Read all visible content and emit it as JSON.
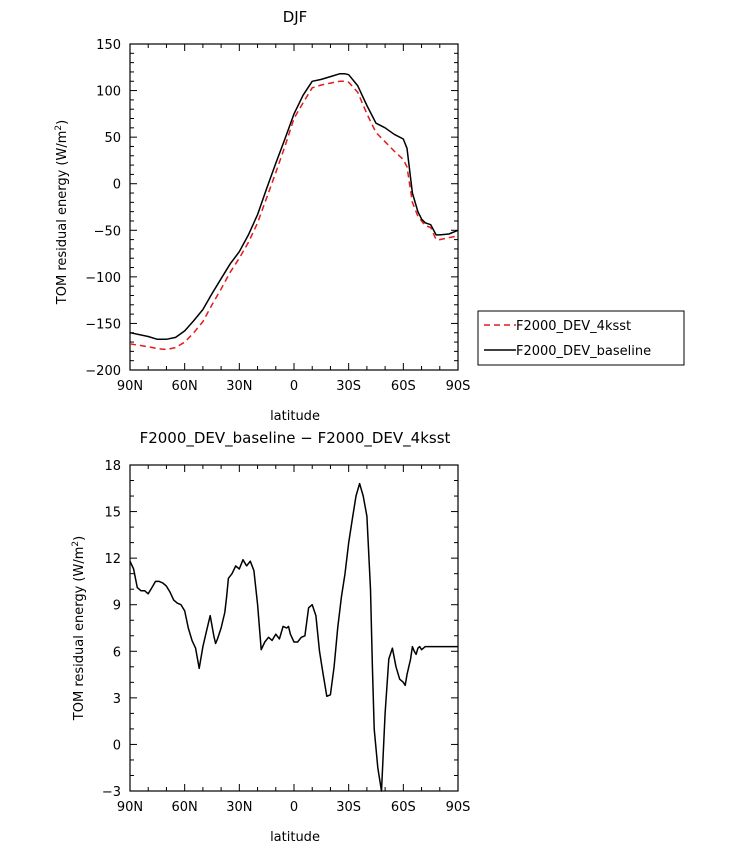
{
  "chart_data": [
    {
      "type": "line",
      "title": "DJF",
      "xlabel": "latitude",
      "ylabel_main": "TOM residual energy (W/m",
      "ylabel_sup": "2",
      "ylabel_tail": ")",
      "xlim": [
        -90,
        90
      ],
      "ylim": [
        -200,
        150
      ],
      "xticks": [
        -90,
        -60,
        -30,
        0,
        30,
        60,
        90
      ],
      "xtick_labels": [
        "90N",
        "60N",
        "30N",
        "0",
        "30S",
        "60S",
        "90S"
      ],
      "yticks": [
        -200,
        -150,
        -100,
        -50,
        0,
        50,
        100,
        150
      ],
      "ytick_labels": [
        "−200",
        "−150",
        "−100",
        "−50",
        "0",
        "50",
        "100",
        "150"
      ],
      "legend_position": "right",
      "series": [
        {
          "name": "F2000_DEV_4ksst",
          "color": "#e41a1c",
          "dash": "dashed",
          "x": [
            -90,
            -80,
            -75,
            -70,
            -65,
            -60,
            -55,
            -50,
            -45,
            -40,
            -35,
            -30,
            -25,
            -20,
            -15,
            -10,
            -5,
            0,
            5,
            10,
            15,
            20,
            25,
            28,
            30,
            35,
            40,
            45,
            50,
            55,
            60,
            62,
            65,
            68,
            70,
            72,
            75,
            78,
            80,
            85,
            90
          ],
          "y": [
            -172,
            -175,
            -177,
            -178,
            -176,
            -170,
            -160,
            -148,
            -130,
            -113,
            -95,
            -80,
            -63,
            -42,
            -15,
            12,
            40,
            70,
            87,
            103,
            106,
            108,
            110,
            110,
            109,
            98,
            75,
            55,
            45,
            35,
            26,
            18,
            -20,
            -35,
            -40,
            -45,
            -47,
            -60,
            -60,
            -58,
            -56
          ]
        },
        {
          "name": "F2000_DEV_baseline",
          "color": "#000000",
          "dash": "solid",
          "x": [
            -90,
            -80,
            -75,
            -70,
            -65,
            -60,
            -55,
            -50,
            -45,
            -40,
            -35,
            -30,
            -25,
            -20,
            -15,
            -10,
            -5,
            0,
            5,
            10,
            15,
            20,
            25,
            28,
            30,
            35,
            40,
            45,
            50,
            55,
            60,
            62,
            65,
            68,
            70,
            72,
            75,
            78,
            80,
            85,
            90
          ],
          "y": [
            -160,
            -164,
            -167,
            -167,
            -165,
            -158,
            -147,
            -135,
            -118,
            -102,
            -86,
            -73,
            -55,
            -33,
            -5,
            22,
            48,
            75,
            95,
            110,
            112,
            115,
            118,
            118,
            117,
            105,
            84,
            65,
            60,
            53,
            48,
            38,
            -10,
            -30,
            -38,
            -42,
            -44,
            -55,
            -55,
            -54,
            -50
          ]
        }
      ]
    },
    {
      "type": "line",
      "title": "F2000_DEV_baseline − F2000_DEV_4ksst",
      "xlabel": "latitude",
      "ylabel_main": "TOM residual energy (W/m",
      "ylabel_sup": "2",
      "ylabel_tail": ")",
      "xlim": [
        -90,
        90
      ],
      "ylim": [
        -3,
        18
      ],
      "xticks": [
        -90,
        -60,
        -30,
        0,
        30,
        60,
        90
      ],
      "xtick_labels": [
        "90N",
        "60N",
        "30N",
        "0",
        "30S",
        "60S",
        "90S"
      ],
      "yticks": [
        -3,
        0,
        3,
        6,
        9,
        12,
        15,
        18
      ],
      "ytick_labels": [
        "−3",
        "0",
        "3",
        "6",
        "9",
        "12",
        "15",
        "18"
      ],
      "series": [
        {
          "name": "F2000_DEV_baseline − F2000_DEV_4ksst",
          "color": "#000000",
          "dash": "solid",
          "x": [
            -90,
            -88,
            -86,
            -84,
            -82,
            -80,
            -78,
            -76,
            -74,
            -72,
            -70,
            -68,
            -66,
            -64,
            -62,
            -60,
            -58,
            -56,
            -54,
            -52,
            -50,
            -48,
            -46,
            -44,
            -43,
            -42,
            -40,
            -38,
            -37,
            -36,
            -34,
            -32,
            -30,
            -28,
            -26,
            -24,
            -22,
            -20,
            -18,
            -16,
            -14,
            -12,
            -10,
            -8,
            -6,
            -4,
            -3,
            -2,
            0,
            2,
            4,
            6,
            8,
            10,
            12,
            14,
            16,
            18,
            20,
            22,
            24,
            26,
            28,
            30,
            32,
            34,
            36,
            38,
            40,
            42,
            43,
            44,
            46,
            48,
            50,
            52,
            54,
            56,
            58,
            60,
            61,
            62,
            64,
            65,
            66,
            67,
            68,
            69,
            70,
            71,
            72,
            74,
            76,
            78,
            80,
            82,
            84,
            86,
            88,
            90
          ],
          "y": [
            11.8,
            11.3,
            10.1,
            9.9,
            9.9,
            9.7,
            10.1,
            10.5,
            10.5,
            10.4,
            10.2,
            9.8,
            9.3,
            9.1,
            9.0,
            8.6,
            7.5,
            6.7,
            6.2,
            4.9,
            6.3,
            7.3,
            8.3,
            7.0,
            6.5,
            6.8,
            7.5,
            8.5,
            9.5,
            10.7,
            11.0,
            11.5,
            11.3,
            11.9,
            11.5,
            11.8,
            11.2,
            9.0,
            6.1,
            6.6,
            6.9,
            6.7,
            7.1,
            6.8,
            7.6,
            7.5,
            7.6,
            7.1,
            6.6,
            6.6,
            6.9,
            7.0,
            8.8,
            9.0,
            8.3,
            6.0,
            4.5,
            3.1,
            3.2,
            5.0,
            7.5,
            9.5,
            11.0,
            13.0,
            14.5,
            16.0,
            16.8,
            16.0,
            14.7,
            10.0,
            5.0,
            1.0,
            -1.5,
            -3.0,
            2.0,
            5.5,
            6.2,
            5.0,
            4.2,
            4.0,
            3.8,
            4.5,
            5.5,
            6.3,
            6.0,
            5.8,
            6.2,
            6.3,
            6.1,
            6.2,
            6.3,
            6.3,
            6.3,
            6.3,
            6.3,
            6.3,
            6.3,
            6.3,
            6.3,
            6.3
          ]
        }
      ]
    }
  ],
  "legend": [
    {
      "label": "F2000_DEV_4ksst",
      "color": "#e41a1c",
      "dash": "dashed"
    },
    {
      "label": "F2000_DEV_baseline",
      "color": "#000000",
      "dash": "solid"
    }
  ]
}
